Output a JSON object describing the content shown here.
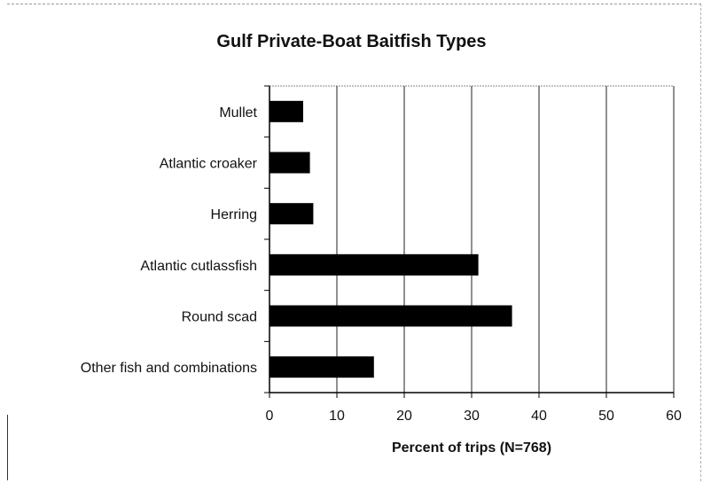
{
  "chart_data": {
    "type": "bar",
    "orientation": "horizontal",
    "title": "Gulf Private-Boat Baitfish Types",
    "xlabel": "Percent of trips (N=768)",
    "ylabel": "",
    "categories": [
      "Mullet",
      "Atlantic croaker",
      "Herring",
      "Atlantic cutlassfish",
      "Round scad",
      "Other fish and combinations"
    ],
    "values": [
      5,
      6,
      6.5,
      31,
      36,
      15.5
    ],
    "xlim": [
      0,
      60
    ],
    "xticks": [
      "0",
      "10",
      "20",
      "30",
      "40",
      "50",
      "60"
    ],
    "grid": "vertical",
    "bar_color": "#000000"
  }
}
